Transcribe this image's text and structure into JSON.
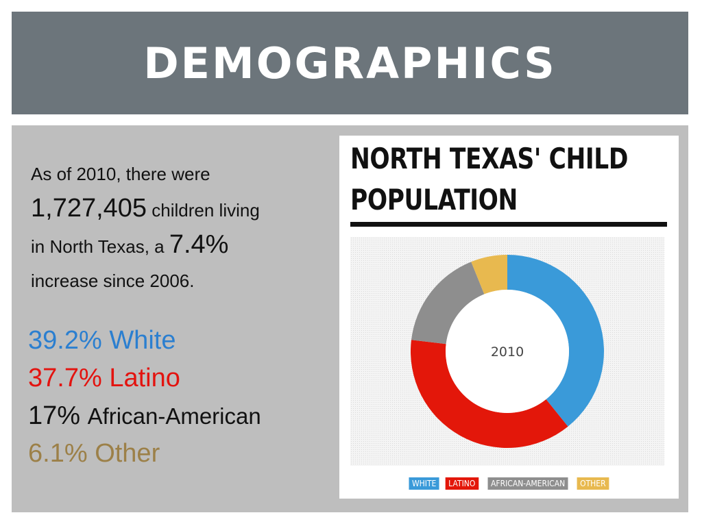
{
  "header": {
    "title": "DEMOGRAPHICS"
  },
  "intro": {
    "line1": "As of 2010, there were",
    "count": "1,727,405",
    "after_count": " children living",
    "prefix_pct": "in North Texas, a ",
    "pct": "7.4%",
    "line4": "increase since 2006."
  },
  "stats": [
    {
      "value": "39.2%",
      "label": "White"
    },
    {
      "value": "37.7%",
      "label": "Latino"
    },
    {
      "value": "17%",
      "label": "African-American"
    },
    {
      "value": "6.1%",
      "label": "Other"
    }
  ],
  "chart_data": {
    "type": "pie",
    "style": "donut",
    "title_line1": "NORTH TEXAS' CHILD",
    "title_line2": "POPULATION",
    "center_label": "2010",
    "legend_position": "bottom",
    "categories": [
      "WHITE",
      "LATINO",
      "AFRICAN-AMERICAN",
      "OTHER"
    ],
    "values": [
      39.2,
      37.7,
      17,
      6.1
    ],
    "colors": [
      "#3a9ad9",
      "#e3170a",
      "#8e8e8e",
      "#e8b94f"
    ]
  }
}
